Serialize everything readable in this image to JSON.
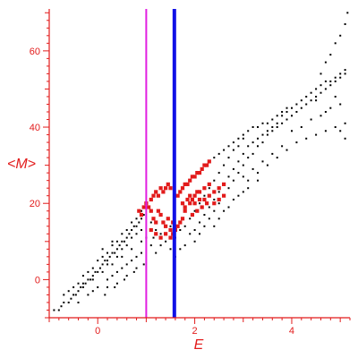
{
  "chart_data": {
    "type": "scatter",
    "title": "",
    "xlabel": "E",
    "ylabel": "<M>",
    "xlim": [
      -1.0,
      5.2
    ],
    "ylim": [
      -10,
      71
    ],
    "xticks": [
      0,
      2,
      4
    ],
    "yticks": [
      0,
      20,
      40,
      60
    ],
    "grid": false,
    "legend": "none",
    "axis_color": "#e21b1b",
    "vlines": [
      {
        "x": 1.0,
        "color": "#e11ee1"
      },
      {
        "x": 1.58,
        "color": "#1010e6"
      }
    ],
    "series": [
      {
        "color": "#000000",
        "points": [
          [
            -0.9,
            -8
          ],
          [
            -0.8,
            -8
          ],
          [
            -0.75,
            -7
          ],
          [
            -0.7,
            -6
          ],
          [
            -0.6,
            -6
          ],
          [
            -0.55,
            -5
          ],
          [
            -0.5,
            -4
          ],
          [
            -0.45,
            -4
          ],
          [
            -0.4,
            -3
          ],
          [
            -0.35,
            -2
          ],
          [
            -0.3,
            -2
          ],
          [
            -0.25,
            -1
          ],
          [
            -0.2,
            0
          ],
          [
            -0.15,
            0
          ],
          [
            -0.1,
            1
          ],
          [
            -0.05,
            2
          ],
          [
            0.0,
            2
          ],
          [
            0.05,
            3
          ],
          [
            0.1,
            4
          ],
          [
            0.15,
            5
          ],
          [
            0.2,
            5
          ],
          [
            0.25,
            6
          ],
          [
            0.3,
            7
          ],
          [
            0.35,
            7
          ],
          [
            0.4,
            8
          ],
          [
            0.45,
            9
          ],
          [
            0.5,
            10
          ],
          [
            0.55,
            10
          ],
          [
            0.6,
            11
          ],
          [
            0.65,
            12
          ],
          [
            0.7,
            13
          ],
          [
            0.75,
            14
          ],
          [
            0.8,
            14
          ],
          [
            0.85,
            15
          ],
          [
            0.9,
            16
          ],
          [
            0.95,
            17
          ],
          [
            -0.6,
            -3
          ],
          [
            -0.4,
            -1
          ],
          [
            -0.3,
            1
          ],
          [
            -0.2,
            2
          ],
          [
            -0.1,
            3
          ],
          [
            0.0,
            5
          ],
          [
            0.1,
            6
          ],
          [
            0.2,
            7
          ],
          [
            0.3,
            9
          ],
          [
            0.4,
            10
          ],
          [
            0.5,
            12
          ],
          [
            0.6,
            13
          ],
          [
            0.7,
            15
          ],
          [
            0.8,
            16
          ],
          [
            0.9,
            18
          ],
          [
            -0.7,
            -4
          ],
          [
            -0.5,
            -2
          ],
          [
            -0.3,
            -1
          ],
          [
            -0.1,
            0
          ],
          [
            0.1,
            2
          ],
          [
            0.3,
            4
          ],
          [
            0.5,
            6
          ],
          [
            0.7,
            8
          ],
          [
            0.9,
            10
          ],
          [
            -0.2,
            -4
          ],
          [
            0.0,
            -2
          ],
          [
            0.2,
            0
          ],
          [
            0.4,
            2
          ],
          [
            0.6,
            4
          ],
          [
            0.8,
            6
          ],
          [
            -0.4,
            -6
          ],
          [
            -0.1,
            -3
          ],
          [
            0.3,
            1
          ],
          [
            0.5,
            3
          ],
          [
            0.7,
            5
          ],
          [
            0.9,
            7
          ],
          [
            0.2,
            -2
          ],
          [
            0.4,
            -1
          ],
          [
            0.6,
            1
          ],
          [
            0.8,
            3
          ],
          [
            0.15,
            -4
          ],
          [
            0.35,
            -2
          ],
          [
            0.55,
            0
          ],
          [
            0.75,
            2
          ],
          [
            0.95,
            4
          ],
          [
            0.1,
            8
          ],
          [
            0.3,
            10
          ],
          [
            0.5,
            8
          ],
          [
            0.7,
            11
          ],
          [
            0.9,
            13
          ],
          [
            0.6,
            9
          ],
          [
            0.4,
            6
          ],
          [
            0.2,
            4
          ],
          [
            0.8,
            12
          ],
          [
            1.1,
            15
          ],
          [
            1.15,
            11
          ],
          [
            1.2,
            7
          ],
          [
            1.3,
            9
          ],
          [
            1.4,
            12
          ],
          [
            1.5,
            14
          ],
          [
            1.6,
            11
          ],
          [
            1.7,
            13
          ],
          [
            1.8,
            14
          ],
          [
            1.9,
            16
          ],
          [
            2.0,
            18
          ],
          [
            2.1,
            20
          ],
          [
            2.2,
            22
          ],
          [
            2.3,
            24
          ],
          [
            2.4,
            26
          ],
          [
            2.5,
            28
          ],
          [
            2.6,
            30
          ],
          [
            2.7,
            32
          ],
          [
            2.8,
            34
          ],
          [
            2.9,
            35
          ],
          [
            2.0,
            13
          ],
          [
            2.1,
            15
          ],
          [
            2.2,
            17
          ],
          [
            2.3,
            19
          ],
          [
            2.4,
            21
          ],
          [
            2.5,
            23
          ],
          [
            2.6,
            25
          ],
          [
            2.7,
            27
          ],
          [
            2.8,
            29
          ],
          [
            2.9,
            31
          ],
          [
            2.0,
            10
          ],
          [
            2.1,
            12
          ],
          [
            2.2,
            14
          ],
          [
            2.3,
            16
          ],
          [
            2.4,
            18
          ],
          [
            2.5,
            20
          ],
          [
            2.6,
            22
          ],
          [
            2.7,
            24
          ],
          [
            2.8,
            26
          ],
          [
            2.9,
            28
          ],
          [
            2.2,
            30
          ],
          [
            2.3,
            31
          ],
          [
            2.4,
            32
          ],
          [
            2.5,
            33
          ],
          [
            2.6,
            34
          ],
          [
            2.7,
            35
          ],
          [
            2.8,
            36
          ],
          [
            2.9,
            37
          ],
          [
            3.0,
            37
          ],
          [
            3.0,
            33
          ],
          [
            3.1,
            35
          ],
          [
            3.2,
            36
          ],
          [
            3.3,
            37
          ],
          [
            3.4,
            38
          ],
          [
            3.5,
            39
          ],
          [
            3.6,
            40
          ],
          [
            3.7,
            41
          ],
          [
            3.8,
            43
          ],
          [
            3.9,
            44
          ],
          [
            3.0,
            38
          ],
          [
            3.1,
            39
          ],
          [
            3.2,
            40
          ],
          [
            3.3,
            40
          ],
          [
            3.4,
            41
          ],
          [
            3.5,
            41
          ],
          [
            3.6,
            42
          ],
          [
            3.7,
            43
          ],
          [
            3.8,
            44
          ],
          [
            3.9,
            45
          ],
          [
            3.0,
            30
          ],
          [
            3.1,
            32
          ],
          [
            3.2,
            33
          ],
          [
            3.3,
            35
          ],
          [
            3.4,
            36
          ],
          [
            3.5,
            38
          ],
          [
            3.6,
            39
          ],
          [
            3.7,
            40
          ],
          [
            3.8,
            41
          ],
          [
            3.9,
            42
          ],
          [
            3.0,
            27
          ],
          [
            3.2,
            29
          ],
          [
            3.4,
            31
          ],
          [
            3.6,
            33
          ],
          [
            3.8,
            35
          ],
          [
            3.1,
            26
          ],
          [
            3.3,
            28
          ],
          [
            3.5,
            30
          ],
          [
            3.7,
            32
          ],
          [
            3.9,
            34
          ],
          [
            4.0,
            45
          ],
          [
            4.1,
            46
          ],
          [
            4.2,
            47
          ],
          [
            4.3,
            48
          ],
          [
            4.4,
            49
          ],
          [
            4.5,
            50
          ],
          [
            4.6,
            51
          ],
          [
            4.7,
            52
          ],
          [
            4.8,
            52
          ],
          [
            4.9,
            53
          ],
          [
            5.0,
            54
          ],
          [
            5.1,
            55
          ],
          [
            4.0,
            43
          ],
          [
            4.1,
            44
          ],
          [
            4.2,
            45
          ],
          [
            4.3,
            46
          ],
          [
            4.4,
            47
          ],
          [
            4.5,
            48
          ],
          [
            4.6,
            49
          ],
          [
            4.7,
            50
          ],
          [
            4.8,
            51
          ],
          [
            4.9,
            52
          ],
          [
            5.0,
            53
          ],
          [
            5.1,
            54
          ],
          [
            4.0,
            39
          ],
          [
            4.2,
            40
          ],
          [
            4.4,
            42
          ],
          [
            4.6,
            43
          ],
          [
            4.8,
            45
          ],
          [
            5.0,
            46
          ],
          [
            4.1,
            36
          ],
          [
            4.3,
            37
          ],
          [
            4.5,
            38
          ],
          [
            4.7,
            39
          ],
          [
            4.9,
            40
          ],
          [
            5.1,
            41
          ],
          [
            4.6,
            54
          ],
          [
            4.7,
            57
          ],
          [
            4.8,
            59
          ],
          [
            4.9,
            62
          ],
          [
            5.0,
            64
          ],
          [
            5.1,
            67
          ],
          [
            5.15,
            70
          ],
          [
            4.5,
            47
          ],
          [
            4.7,
            44
          ],
          [
            4.9,
            48
          ],
          [
            5.1,
            37
          ],
          [
            5.0,
            39
          ],
          [
            2.5,
            16
          ],
          [
            2.7,
            19
          ],
          [
            2.9,
            22
          ],
          [
            3.1,
            24
          ],
          [
            3.3,
            26
          ],
          [
            2.4,
            14
          ],
          [
            2.6,
            18
          ],
          [
            2.8,
            21
          ],
          [
            3.0,
            23
          ],
          [
            1.9,
            12
          ],
          [
            1.8,
            9
          ],
          [
            1.7,
            8
          ],
          [
            1.6,
            6
          ],
          [
            1.5,
            8
          ],
          [
            1.4,
            10
          ],
          [
            1.3,
            12
          ],
          [
            1.2,
            13
          ],
          [
            1.1,
            9
          ],
          [
            1.0,
            11
          ]
        ]
      },
      {
        "color": "#e21b1b",
        "points": [
          [
            0.85,
            18
          ],
          [
            0.9,
            17
          ],
          [
            0.95,
            19
          ],
          [
            1.0,
            20
          ],
          [
            1.05,
            19
          ],
          [
            1.1,
            21
          ],
          [
            1.15,
            22
          ],
          [
            1.2,
            23
          ],
          [
            1.25,
            22
          ],
          [
            1.3,
            24
          ],
          [
            1.35,
            23
          ],
          [
            1.4,
            24
          ],
          [
            1.45,
            25
          ],
          [
            1.5,
            24
          ],
          [
            1.1,
            18
          ],
          [
            1.15,
            16
          ],
          [
            1.2,
            15
          ],
          [
            1.25,
            18
          ],
          [
            1.3,
            17
          ],
          [
            1.35,
            15
          ],
          [
            1.4,
            14
          ],
          [
            1.45,
            16
          ],
          [
            1.5,
            13
          ],
          [
            1.55,
            15
          ],
          [
            1.1,
            13
          ],
          [
            1.2,
            12
          ],
          [
            1.3,
            11
          ],
          [
            1.4,
            12
          ],
          [
            1.5,
            11
          ],
          [
            1.55,
            12
          ],
          [
            1.6,
            13
          ],
          [
            1.65,
            14
          ],
          [
            1.7,
            15
          ],
          [
            1.75,
            16
          ],
          [
            1.65,
            22
          ],
          [
            1.7,
            23
          ],
          [
            1.75,
            24
          ],
          [
            1.8,
            25
          ],
          [
            1.85,
            25
          ],
          [
            1.9,
            26
          ],
          [
            1.95,
            27
          ],
          [
            2.0,
            27
          ],
          [
            2.05,
            28
          ],
          [
            2.1,
            28
          ],
          [
            2.15,
            29
          ],
          [
            2.2,
            30
          ],
          [
            2.25,
            30
          ],
          [
            2.3,
            31
          ],
          [
            1.75,
            20
          ],
          [
            1.8,
            19
          ],
          [
            1.85,
            21
          ],
          [
            1.9,
            22
          ],
          [
            1.95,
            21
          ],
          [
            2.0,
            22
          ],
          [
            2.05,
            23
          ],
          [
            2.1,
            23
          ],
          [
            2.2,
            24
          ],
          [
            2.3,
            25
          ],
          [
            1.8,
            18
          ],
          [
            1.9,
            20
          ],
          [
            2.0,
            20
          ],
          [
            2.1,
            21
          ],
          [
            2.2,
            21
          ],
          [
            2.3,
            22
          ],
          [
            2.4,
            23
          ],
          [
            2.5,
            24
          ],
          [
            2.6,
            25
          ],
          [
            1.95,
            17
          ],
          [
            2.05,
            18
          ],
          [
            2.15,
            19
          ],
          [
            2.25,
            20
          ],
          [
            2.4,
            20
          ],
          [
            2.5,
            21
          ],
          [
            2.6,
            22
          ]
        ]
      }
    ]
  }
}
